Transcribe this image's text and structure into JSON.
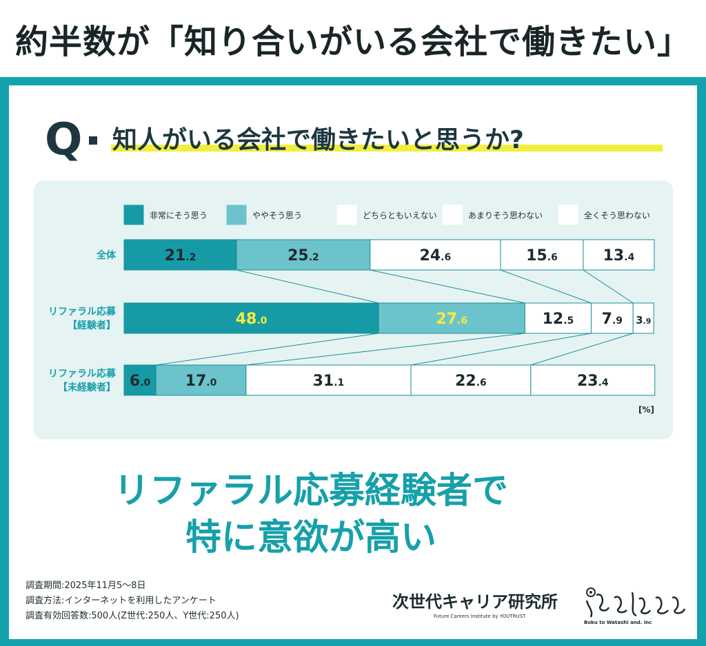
{
  "headline": "約半数が「知り合いがいる会社で働きたい」",
  "question": {
    "mark": "Q",
    "text": "知人がいる会社で働きたいと思うか?"
  },
  "summary": {
    "line1": "リファラル応募経験者で",
    "line2": "特に意欲が高い"
  },
  "survey": {
    "period": "調査期間:2025年11月5～8日",
    "method": "調査方法:インターネットを利用したアンケート",
    "responses": "調査有効回答数:500人(Z世代:250人、Y世代:250人)"
  },
  "logos": {
    "ccr_name": "次世代キャリア研究所",
    "ccr_sub": "Future Careers Institute by YOUTRUST",
    "bw_sub": "Boku to Watashi and. inc"
  },
  "colors": {
    "frame": "#14a3ad",
    "dark_teal": "#169aa6",
    "light_teal": "#6cc3cb",
    "white": "#ffffff",
    "highlight_text": "#f4ee3a",
    "underline": "#f2ee3c"
  },
  "chart_data": {
    "type": "bar",
    "orientation": "horizontal",
    "stacked": true,
    "unit": "[%]",
    "categories": [
      "全体",
      "リファラル応募【経験者】",
      "リファラル応募【未経験者】"
    ],
    "category_lines": [
      [
        "全体"
      ],
      [
        "リファラル応募",
        "【経験者】"
      ],
      [
        "リファラル応募",
        "【未経験者】"
      ]
    ],
    "series": [
      {
        "name": "非常にそう思う",
        "values": [
          21.2,
          48.0,
          6.0
        ],
        "color": "#169aa6"
      },
      {
        "name": "ややそう思う",
        "values": [
          25.2,
          27.6,
          17.0
        ],
        "color": "#6cc3cb"
      },
      {
        "name": "どちらともいえない",
        "values": [
          24.6,
          12.5,
          31.1
        ],
        "color": "#ffffff"
      },
      {
        "name": "あまりそう思わない",
        "values": [
          15.6,
          7.9,
          22.6
        ],
        "color": "#ffffff"
      },
      {
        "name": "全くそう思わない",
        "values": [
          13.4,
          3.9,
          23.4
        ],
        "color": "#ffffff"
      }
    ],
    "highlight_row": 1,
    "legend_position": "top"
  }
}
